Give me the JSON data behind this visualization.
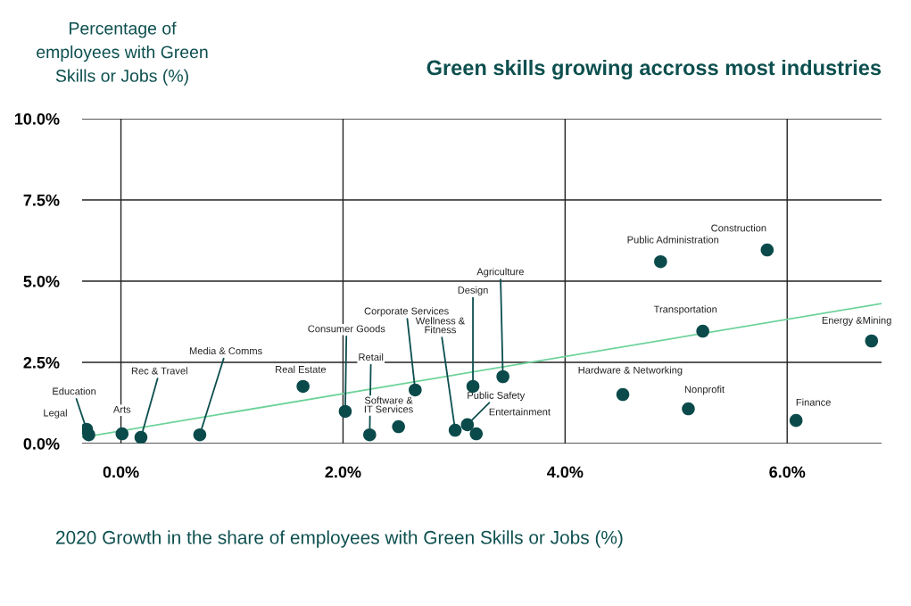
{
  "chart_data": {
    "type": "scatter",
    "title": "Green skills growing accross most industries",
    "ylabel": "Percentage of\nemployees with Green\nSkills or Jobs (%)",
    "xlabel": "2020 Growth in the share of employees with Green Skills or Jobs (%)",
    "series": [
      {
        "color": "#0b4a4a",
        "marker": "circle",
        "x": [
          -0.31,
          -0.29,
          0.01,
          0.18,
          0.71,
          1.64,
          2.02,
          2.24,
          2.5,
          2.65,
          3.01,
          3.12,
          3.2,
          3.17,
          3.44,
          4.52,
          4.86,
          5.82,
          5.24,
          5.11,
          6.08,
          6.76
        ],
        "values": [
          0.44,
          0.27,
          0.3,
          0.19,
          0.27,
          1.76,
          0.99,
          0.27,
          0.52,
          1.65,
          0.41,
          0.58,
          0.3,
          1.76,
          2.06,
          1.51,
          5.6,
          5.96,
          3.46,
          1.07,
          0.71,
          3.16
        ]
      },
      {
        "type": "line",
        "color": "#6dd39a",
        "x": [
          -0.35,
          6.85
        ],
        "values": [
          0.19,
          4.31
        ]
      }
    ],
    "annotations": [
      {
        "text": "Education",
        "x": -0.31,
        "y": 0.44
      },
      {
        "text": "Legal",
        "x": -0.29,
        "y": 0.27
      },
      {
        "text": "Arts",
        "x": 0.01,
        "y": 0.3
      },
      {
        "text": "Rec & Travel",
        "x": 0.18,
        "y": 0.19
      },
      {
        "text": "Media & Comms",
        "x": 0.71,
        "y": 0.27
      },
      {
        "text": "Real Estate",
        "x": 1.64,
        "y": 1.76
      },
      {
        "text": "Consumer Goods",
        "x": 2.02,
        "y": 0.99
      },
      {
        "text": "Retail",
        "x": 2.24,
        "y": 0.27
      },
      {
        "text": "Software &\nIT Services",
        "x": 2.5,
        "y": 0.52
      },
      {
        "text": "Corporate Services",
        "x": 2.65,
        "y": 1.65
      },
      {
        "text": "Wellness &\nFitness",
        "x": 3.01,
        "y": 0.41
      },
      {
        "text": "Public Safety",
        "x": 3.12,
        "y": 0.58
      },
      {
        "text": "Entertainment",
        "x": 3.2,
        "y": 0.3
      },
      {
        "text": "Design",
        "x": 3.17,
        "y": 1.76
      },
      {
        "text": "Agriculture",
        "x": 3.44,
        "y": 2.06
      },
      {
        "text": "Hardware & Networking",
        "x": 4.52,
        "y": 1.51
      },
      {
        "text": "Public Administration",
        "x": 4.86,
        "y": 5.6
      },
      {
        "text": "Construction",
        "x": 5.82,
        "y": 5.96
      },
      {
        "text": "Transportation",
        "x": 5.24,
        "y": 3.46
      },
      {
        "text": "Nonprofit",
        "x": 5.11,
        "y": 1.07
      },
      {
        "text": "Finance",
        "x": 6.08,
        "y": 0.71
      },
      {
        "text": "Energy &Mining",
        "x": 6.76,
        "y": 3.16
      }
    ],
    "xlim": [
      -0.35,
      6.85
    ],
    "xticks": [
      {
        "value": 0,
        "label": "0.0%"
      },
      {
        "value": 2,
        "label": "2.0%"
      },
      {
        "value": 4,
        "label": "4.0%"
      },
      {
        "value": 6,
        "label": "6.0%"
      }
    ],
    "ylim": [
      0,
      10
    ],
    "yticks": [
      {
        "value": 0,
        "label": "0.0%"
      },
      {
        "value": 2.5,
        "label": "2.5%"
      },
      {
        "value": 5,
        "label": "5.0%"
      },
      {
        "value": 7.5,
        "label": "7.5%"
      },
      {
        "value": 10,
        "label": "10.0%"
      }
    ],
    "grid": true
  }
}
